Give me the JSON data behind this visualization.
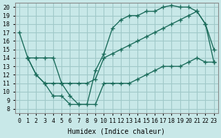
{
  "xlabel": "Humidex (Indice chaleur)",
  "ylabel": "",
  "bg_color": "#c8e8e8",
  "line_color": "#1a6b5a",
  "grid_color": "#a0c8c8",
  "xlim": [
    -0.5,
    23.5
  ],
  "ylim": [
    7.5,
    20.5
  ],
  "xticks": [
    0,
    1,
    2,
    3,
    4,
    5,
    6,
    7,
    8,
    9,
    10,
    11,
    12,
    13,
    14,
    15,
    16,
    17,
    18,
    19,
    20,
    21,
    22,
    23
  ],
  "yticks": [
    8,
    9,
    10,
    11,
    12,
    13,
    14,
    15,
    16,
    17,
    18,
    19,
    20
  ],
  "series": [
    {
      "x": [
        0,
        1,
        2,
        3,
        4,
        5,
        6,
        7,
        8,
        9,
        10,
        11,
        12,
        13,
        14,
        15,
        16,
        17,
        18,
        19,
        20,
        21,
        22,
        23
      ],
      "y": [
        17,
        14,
        14,
        14,
        14,
        11,
        9.5,
        8.5,
        8.5,
        12.5,
        14.5,
        17.5,
        18.5,
        19,
        19,
        19.5,
        19.5,
        20,
        20.2,
        20,
        20,
        19.5,
        18,
        15
      ]
    },
    {
      "x": [
        1,
        2,
        3,
        4,
        5,
        6,
        7,
        8,
        9,
        10,
        11,
        12,
        13,
        14,
        15,
        16,
        17,
        18,
        19,
        20,
        21,
        22,
        23
      ],
      "y": [
        14,
        12,
        11,
        11,
        11,
        11,
        11,
        11,
        11.5,
        14,
        14.5,
        15,
        15.5,
        16,
        16.5,
        17,
        17.5,
        18,
        18.5,
        19,
        19.5,
        18,
        13.5
      ]
    },
    {
      "x": [
        1,
        2,
        3,
        4,
        5,
        6,
        7,
        9,
        10,
        11,
        12,
        13,
        14,
        15,
        16,
        17,
        18,
        19,
        20,
        21,
        22,
        23
      ],
      "y": [
        14,
        12,
        11,
        9.5,
        9.5,
        8.5,
        8.5,
        8.5,
        11,
        11,
        11,
        11,
        11.5,
        12,
        12.5,
        13,
        13,
        13,
        13.5,
        14,
        13.5,
        13.5
      ]
    }
  ]
}
